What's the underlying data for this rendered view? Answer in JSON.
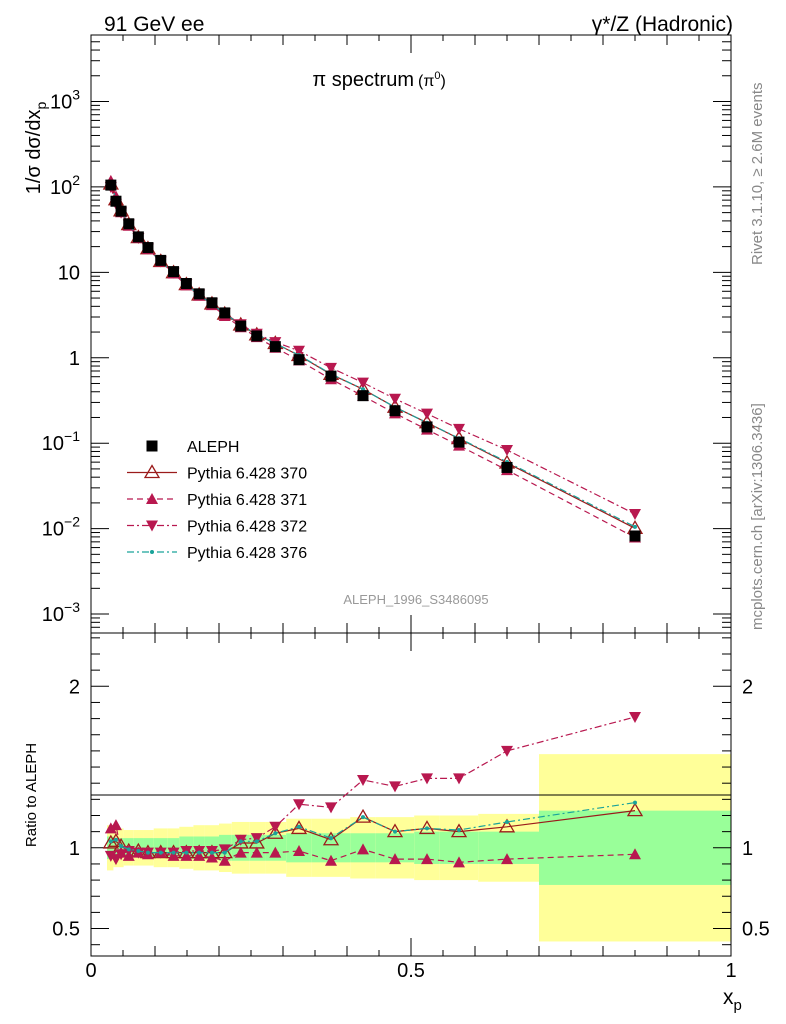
{
  "header": {
    "left": "91 GeV ee",
    "right": "γ*/Z (Hadronic)"
  },
  "side_labels": {
    "rivet": "Rivet 3.1.10, ≥ 2.6M events",
    "mcplots": "mcplots.cern.ch [arXiv:1306.3436]"
  },
  "chart_data": {
    "type": "line",
    "title_main": "π spectrum",
    "title_sub": "(π",
    "title_sup": "0",
    "title_close": ")",
    "analysis_label": "ALEPH_1996_S3486095",
    "main_panel": {
      "ylabel_prefix": "1/σ dσ/dx",
      "ylabel_sub": "p",
      "yscale": "log",
      "ylim": [
        0.0006,
        6000
      ],
      "y_ticks": [
        {
          "value": 0.001,
          "base": "10",
          "exp": "−3"
        },
        {
          "value": 0.01,
          "base": "10",
          "exp": "−2"
        },
        {
          "value": 0.1,
          "base": "10",
          "exp": "−1"
        },
        {
          "value": 1,
          "base": "1",
          "exp": ""
        },
        {
          "value": 10,
          "base": "10",
          "exp": ""
        },
        {
          "value": 100,
          "base": "10",
          "exp": "2"
        },
        {
          "value": 1000,
          "base": "10",
          "exp": "3"
        }
      ]
    },
    "ratio_panel": {
      "ylabel": "Ratio to ALEPH",
      "ylim": [
        0.33,
        2.33
      ],
      "y_ticks": [
        {
          "value": 0.5,
          "label": "0.5"
        },
        {
          "value": 1,
          "label": "1"
        },
        {
          "value": 2,
          "label": "2"
        }
      ]
    },
    "x_axis": {
      "label": "x",
      "label_sub": "p",
      "xlim": [
        0,
        1
      ],
      "ticks": [
        {
          "value": 0,
          "label": "0"
        },
        {
          "value": 0.5,
          "label": "0.5"
        },
        {
          "value": 1,
          "label": "1"
        }
      ]
    },
    "x": [
      0.031,
      0.039,
      0.047,
      0.059,
      0.074,
      0.089,
      0.109,
      0.129,
      0.149,
      0.169,
      0.189,
      0.209,
      0.234,
      0.259,
      0.288,
      0.325,
      0.375,
      0.425,
      0.475,
      0.525,
      0.575,
      0.65,
      0.85
    ],
    "bins": [
      0.025,
      0.035,
      0.043,
      0.051,
      0.066,
      0.082,
      0.098,
      0.12,
      0.138,
      0.16,
      0.178,
      0.2,
      0.22,
      0.248,
      0.272,
      0.305,
      0.345,
      0.405,
      0.445,
      0.505,
      0.545,
      0.605,
      0.7,
      1.0
    ],
    "aleph_values": [
      105,
      68,
      52,
      37,
      26,
      19.5,
      13.8,
      10.2,
      7.4,
      5.6,
      4.4,
      3.35,
      2.35,
      1.8,
      1.35,
      0.95,
      0.61,
      0.36,
      0.24,
      0.155,
      0.103,
      0.052,
      0.0082
    ],
    "ratio_band_inner": [
      0.07,
      0.06,
      0.06,
      0.06,
      0.06,
      0.06,
      0.06,
      0.06,
      0.07,
      0.07,
      0.07,
      0.08,
      0.08,
      0.08,
      0.08,
      0.09,
      0.09,
      0.09,
      0.09,
      0.1,
      0.1,
      0.1,
      0.23
    ],
    "ratio_band_outer": [
      0.14,
      0.12,
      0.12,
      0.11,
      0.11,
      0.11,
      0.12,
      0.12,
      0.13,
      0.14,
      0.14,
      0.15,
      0.16,
      0.16,
      0.16,
      0.18,
      0.18,
      0.19,
      0.19,
      0.2,
      0.2,
      0.21,
      0.58
    ],
    "series": [
      {
        "name": "ALEPH",
        "color": "#000000",
        "marker": "square",
        "line": "none",
        "ratio": [
          1,
          1,
          1,
          1,
          1,
          1,
          1,
          1,
          1,
          1,
          1,
          1,
          1,
          1,
          1,
          1,
          1,
          1,
          1,
          1,
          1,
          1,
          1
        ]
      },
      {
        "name": "Pythia 6.428 370",
        "color": "#9b1b1b",
        "marker": "triangle-up-open",
        "line": "solid",
        "ratio": [
          1.03,
          1.04,
          1.01,
          0.98,
          0.98,
          0.97,
          0.97,
          0.97,
          0.97,
          0.97,
          0.97,
          0.97,
          1.03,
          1.03,
          1.09,
          1.12,
          1.05,
          1.19,
          1.1,
          1.12,
          1.1,
          1.13,
          1.23
        ]
      },
      {
        "name": "Pythia 6.428 371",
        "color": "#b8184f",
        "marker": "triangle-up",
        "line": "dashed",
        "ratio": [
          1.12,
          1.14,
          0.97,
          0.95,
          0.97,
          0.96,
          0.97,
          0.95,
          0.95,
          0.95,
          0.94,
          0.92,
          0.97,
          0.97,
          0.97,
          0.98,
          0.92,
          0.99,
          0.93,
          0.93,
          0.91,
          0.93,
          0.96
        ]
      },
      {
        "name": "Pythia 6.428 372",
        "color": "#b8184f",
        "marker": "triangle-down",
        "line": "dashdot",
        "ratio": [
          0.95,
          0.93,
          0.96,
          0.98,
          0.97,
          0.97,
          0.97,
          0.97,
          0.98,
          0.98,
          0.98,
          0.99,
          1.05,
          1.06,
          1.13,
          1.27,
          1.25,
          1.42,
          1.38,
          1.43,
          1.43,
          1.6,
          1.81
        ]
      },
      {
        "name": "Pythia 6.428 376",
        "color": "#1aa39a",
        "marker": "dot",
        "line": "dashdot",
        "ratio": [
          1.04,
          1.05,
          1.01,
          0.99,
          0.98,
          0.97,
          0.97,
          0.97,
          0.97,
          0.97,
          0.97,
          0.97,
          1.04,
          1.04,
          1.09,
          1.13,
          1.06,
          1.19,
          1.1,
          1.12,
          1.11,
          1.16,
          1.28
        ]
      }
    ],
    "legend_position": "lower-left"
  }
}
